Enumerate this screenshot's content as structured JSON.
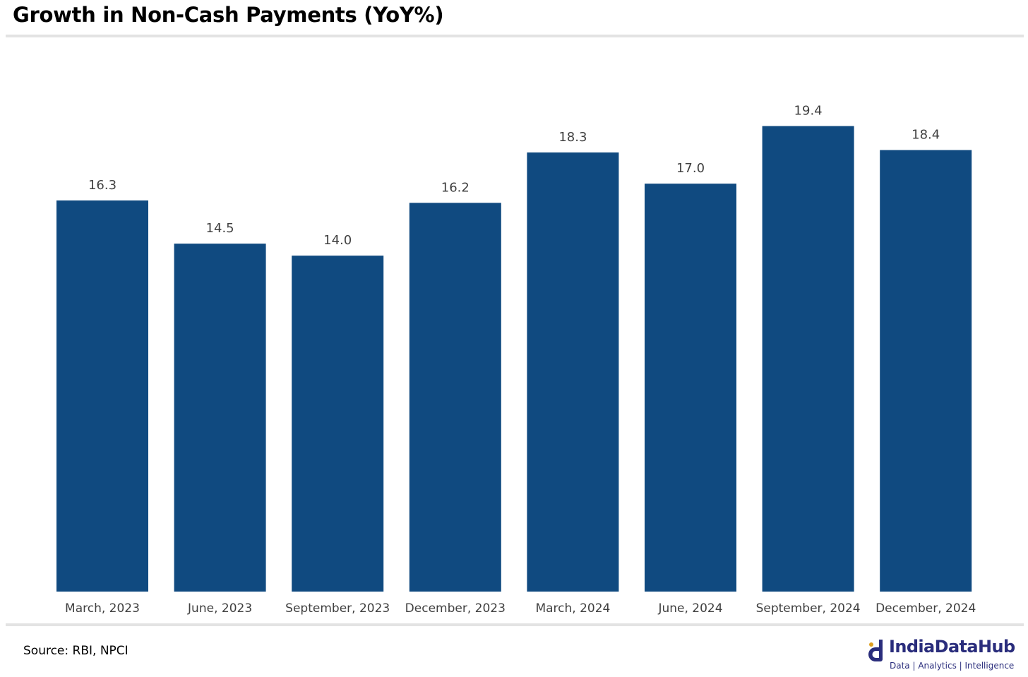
{
  "chart_data": {
    "type": "bar",
    "title": "Growth in Non-Cash Payments (YoY%)",
    "categories": [
      "March, 2023",
      "June, 2023",
      "September, 2023",
      "December, 2023",
      "March, 2024",
      "June, 2024",
      "September, 2024",
      "December, 2024"
    ],
    "values": [
      16.3,
      14.5,
      14.0,
      16.2,
      18.3,
      17.0,
      19.4,
      18.4
    ],
    "data_labels": [
      "16.3",
      "14.5",
      "14.0",
      "16.2",
      "18.3",
      "17.0",
      "19.4",
      "18.4"
    ],
    "xlabel": "",
    "ylabel": "",
    "ylim": [
      0,
      22.3
    ],
    "grid": false,
    "legend": "none",
    "bar_color": "#104a80"
  },
  "footer": {
    "source": "Source: RBI, NPCI",
    "brand_name": "IndiaDataHub",
    "brand_tagline": "Data | Analytics | Intelligence",
    "brand_color": "#2a2d7c"
  }
}
